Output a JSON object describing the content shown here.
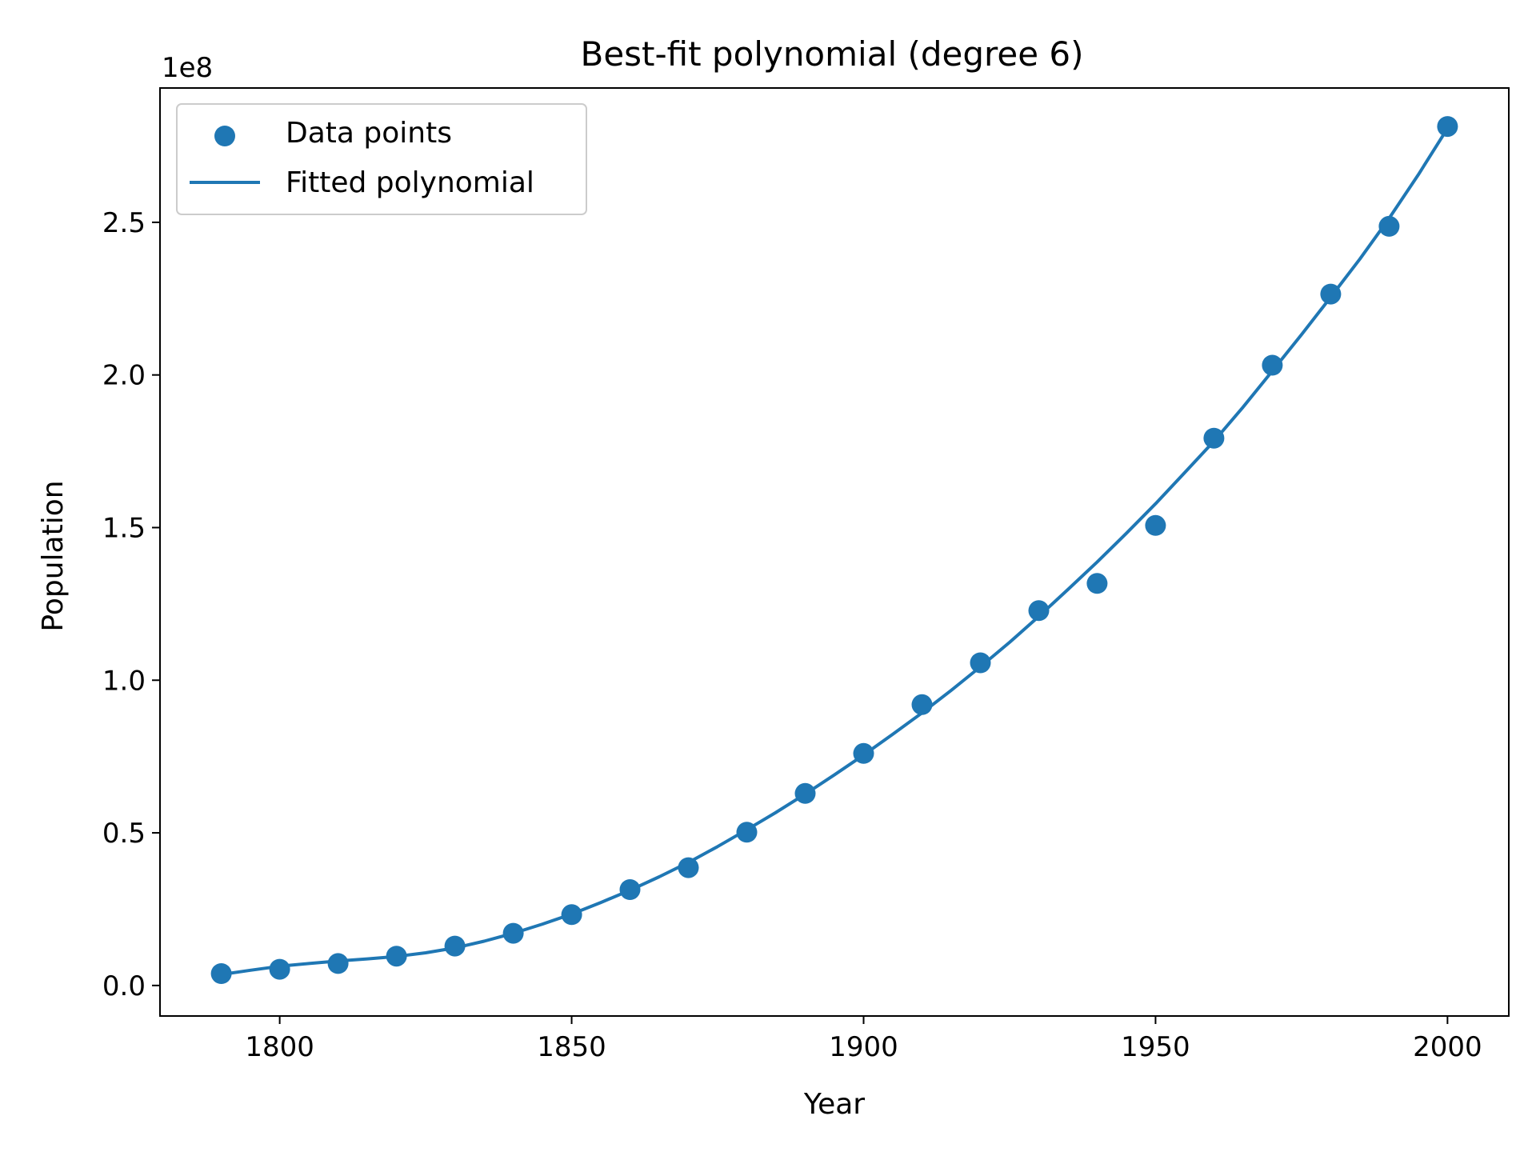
{
  "chart_data": {
    "type": "scatter",
    "title": "Best-fit polynomial (degree 6)",
    "xlabel": "Year",
    "ylabel": "Population",
    "y_offset_label": "1e8",
    "y_scale": 100000000,
    "xlim": [
      1779.5,
      2010.5
    ],
    "ylim": [
      -10000000,
      294000000
    ],
    "x_ticks": [
      1800,
      1850,
      1900,
      1950,
      2000
    ],
    "x_tick_labels": [
      "1800",
      "1850",
      "1900",
      "1950",
      "2000"
    ],
    "y_ticks": [
      0,
      50000000,
      100000000,
      150000000,
      200000000,
      250000000
    ],
    "y_tick_labels": [
      "0.0",
      "0.5",
      "1.0",
      "1.5",
      "2.0",
      "2.5"
    ],
    "grid": false,
    "legend_position": "top-left",
    "series": [
      {
        "name": "Data points",
        "kind": "scatter",
        "color": "#1f77b4",
        "x": [
          1790,
          1800,
          1810,
          1820,
          1830,
          1840,
          1850,
          1860,
          1870,
          1880,
          1890,
          1900,
          1910,
          1920,
          1930,
          1940,
          1950,
          1960,
          1970,
          1980,
          1990,
          2000
        ],
        "y": [
          3900000,
          5300000,
          7200000,
          9600000,
          12900000,
          17100000,
          23200000,
          31400000,
          38600000,
          50200000,
          62900000,
          76000000,
          92000000,
          105700000,
          122800000,
          131700000,
          150700000,
          179300000,
          203200000,
          226500000,
          248700000,
          281400000
        ]
      },
      {
        "name": "Fitted polynomial",
        "kind": "line",
        "color": "#1f77b4",
        "x": [
          1790,
          1795,
          1800,
          1805,
          1810,
          1815,
          1820,
          1825,
          1830,
          1835,
          1840,
          1845,
          1850,
          1855,
          1860,
          1865,
          1870,
          1875,
          1880,
          1885,
          1890,
          1895,
          1900,
          1905,
          1910,
          1915,
          1920,
          1925,
          1930,
          1935,
          1940,
          1945,
          1950,
          1955,
          1960,
          1965,
          1970,
          1975,
          1980,
          1985,
          1990,
          1995,
          2000
        ],
        "y": [
          3600000,
          5000000,
          6300000,
          7200000,
          8000000,
          8700000,
          9500000,
          10700000,
          12300000,
          14500000,
          17100000,
          20100000,
          23400000,
          27200000,
          31200000,
          35600000,
          40300000,
          45500000,
          51000000,
          56700000,
          62700000,
          69000000,
          75500000,
          82300000,
          89300000,
          96700000,
          104400000,
          112400000,
          120900000,
          129700000,
          138700000,
          148100000,
          157800000,
          168000000,
          178300000,
          189500000,
          201300000,
          213200000,
          225500000,
          238000000,
          251300000,
          265600000,
          280800000
        ]
      }
    ]
  }
}
